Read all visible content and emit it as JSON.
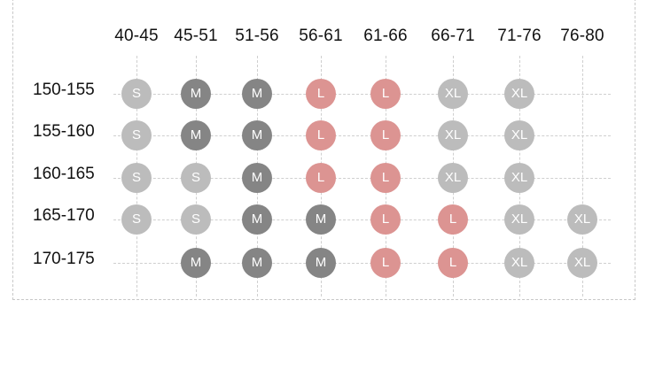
{
  "columns": [
    "40-45",
    "45-51",
    "51-56",
    "56-61",
    "61-66",
    "66-71",
    "71-76",
    "76-80"
  ],
  "rows": [
    {
      "label": "150-155",
      "sizes": [
        "S",
        "M",
        "M",
        "L",
        "L",
        "XL",
        "XL",
        ""
      ]
    },
    {
      "label": "155-160",
      "sizes": [
        "S",
        "M",
        "M",
        "L",
        "L",
        "XL",
        "XL",
        ""
      ]
    },
    {
      "label": "160-165",
      "sizes": [
        "S",
        "S",
        "M",
        "L",
        "L",
        "XL",
        "XL",
        ""
      ]
    },
    {
      "label": "165-170",
      "sizes": [
        "S",
        "S",
        "M",
        "M",
        "L",
        "L",
        "XL",
        "XL"
      ]
    },
    {
      "label": "170-175",
      "sizes": [
        "",
        "M",
        "M",
        "M",
        "L",
        "L",
        "XL",
        "XL"
      ]
    }
  ],
  "colors": {
    "S": "#bcbcbc",
    "M": "#858585",
    "L": "#dc9492",
    "XL": "#bcbcbc"
  }
}
